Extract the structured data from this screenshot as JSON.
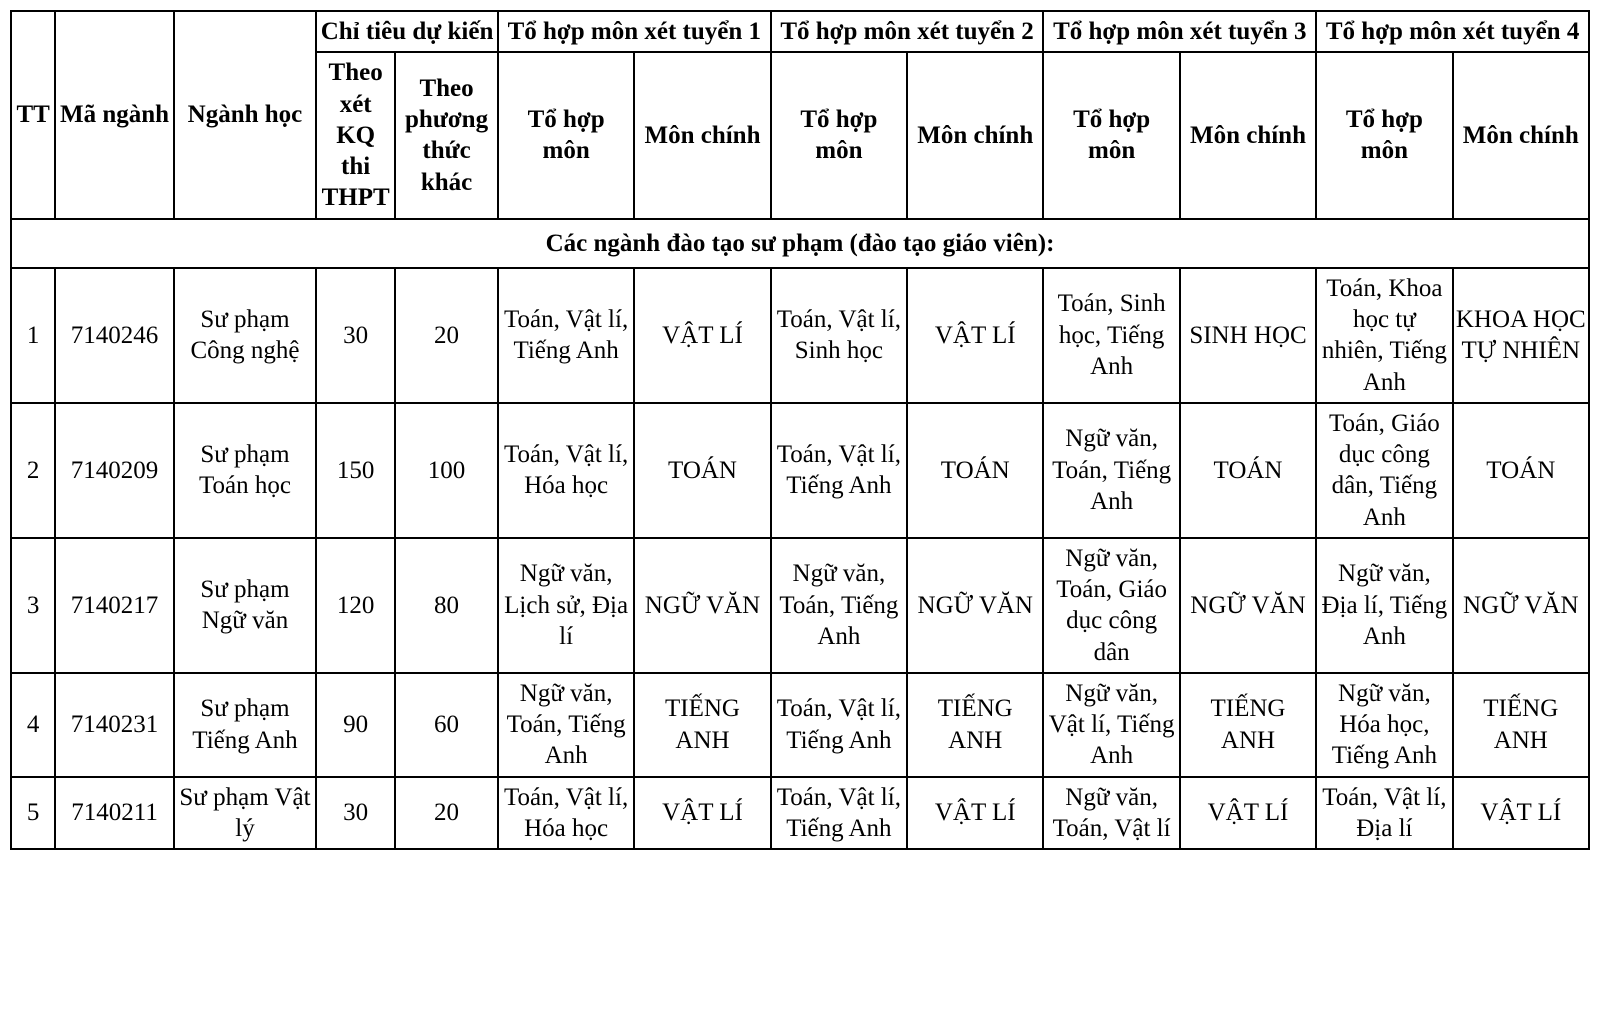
{
  "headers": {
    "tt": "TT",
    "code": "Mã ngành",
    "major": "Ngành học",
    "quota": "Chỉ tiêu dự kiến",
    "quota_sub1": "Theo xét KQ thi THPT",
    "quota_sub2": "Theo phương thức khác",
    "combo1": "Tổ hợp môn xét tuyển 1",
    "combo2": "Tổ hợp môn xét tuyển 2",
    "combo3": "Tổ hợp môn xét tuyển 3",
    "combo4": "Tổ hợp môn xét tuyển 4",
    "combo_sub1": "Tổ hợp môn",
    "combo_sub2": "Môn chính"
  },
  "section_title": "Các ngành đào tạo sư phạm (đào tạo giáo viên):",
  "rows": [
    {
      "tt": "1",
      "code": "7140246",
      "major": "Sư phạm Công nghệ",
      "q1": "30",
      "q2": "20",
      "c1a": "Toán, Vật lí, Tiếng Anh",
      "c1b": "VẬT LÍ",
      "c2a": "Toán, Vật lí, Sinh học",
      "c2b": "VẬT LÍ",
      "c3a": "Toán, Sinh học, Tiếng Anh",
      "c3b": "SINH HỌC",
      "c4a": "Toán, Khoa học tự nhiên, Tiếng Anh",
      "c4b": "KHOA HỌC TỰ NHIÊN"
    },
    {
      "tt": "2",
      "code": "7140209",
      "major": "Sư phạm Toán học",
      "q1": "150",
      "q2": "100",
      "c1a": "Toán, Vật lí, Hóa học",
      "c1b": "TOÁN",
      "c2a": "Toán, Vật lí, Tiếng Anh",
      "c2b": "TOÁN",
      "c3a": "Ngữ văn, Toán, Tiếng Anh",
      "c3b": "TOÁN",
      "c4a": "Toán, Giáo dục công dân, Tiếng Anh",
      "c4b": "TOÁN"
    },
    {
      "tt": "3",
      "code": "7140217",
      "major": "Sư phạm Ngữ văn",
      "q1": "120",
      "q2": "80",
      "c1a": "Ngữ văn, Lịch sử, Địa lí",
      "c1b": "NGỮ VĂN",
      "c2a": "Ngữ văn, Toán, Tiếng Anh",
      "c2b": "NGỮ VĂN",
      "c3a": "Ngữ văn, Toán, Giáo dục công dân",
      "c3b": "NGỮ VĂN",
      "c4a": "Ngữ văn, Địa lí, Tiếng Anh",
      "c4b": "NGỮ VĂN"
    },
    {
      "tt": "4",
      "code": "7140231",
      "major": "Sư phạm Tiếng Anh",
      "q1": "90",
      "q2": "60",
      "c1a": "Ngữ văn, Toán, Tiếng Anh",
      "c1b": "TIẾNG ANH",
      "c2a": "Toán, Vật lí, Tiếng Anh",
      "c2b": "TIẾNG ANH",
      "c3a": "Ngữ văn, Vật lí, Tiếng Anh",
      "c3b": "TIẾNG ANH",
      "c4a": "Ngữ văn, Hóa học, Tiếng Anh",
      "c4b": "TIẾNG ANH"
    },
    {
      "tt": "5",
      "code": "7140211",
      "major": "Sư phạm Vật lý",
      "q1": "30",
      "q2": "20",
      "c1a": "Toán, Vật lí, Hóa học",
      "c1b": "VẬT LÍ",
      "c2a": "Toán, Vật lí, Tiếng Anh",
      "c2b": "VẬT LÍ",
      "c3a": "Ngữ văn, Toán, Vật lí",
      "c3b": "VẬT LÍ",
      "c4a": "Toán, Vật lí, Địa lí",
      "c4b": "VẬT LÍ"
    }
  ]
}
